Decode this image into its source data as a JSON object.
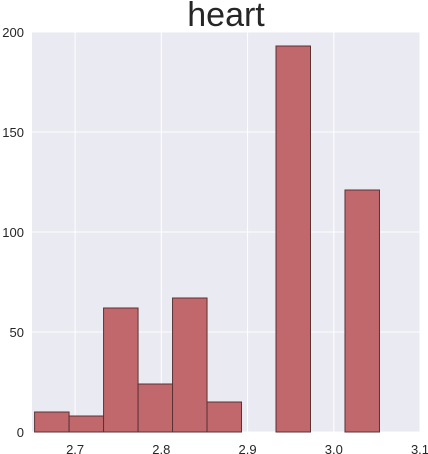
{
  "chart_data": {
    "type": "bar",
    "title": "heart",
    "xlabel": "",
    "ylabel": "",
    "xlim": [
      2.65,
      3.1
    ],
    "ylim": [
      0,
      200
    ],
    "grid": true,
    "x_ticks": [
      "2.7",
      "2.8",
      "2.9",
      "3.0",
      "3.1"
    ],
    "y_ticks": [
      "0",
      "50",
      "100",
      "150",
      "200"
    ],
    "bins": [
      {
        "start": 2.653,
        "end": 2.693,
        "value": 10
      },
      {
        "start": 2.693,
        "end": 2.733,
        "value": 8
      },
      {
        "start": 2.733,
        "end": 2.773,
        "value": 62
      },
      {
        "start": 2.773,
        "end": 2.813,
        "value": 24
      },
      {
        "start": 2.813,
        "end": 2.853,
        "value": 67
      },
      {
        "start": 2.853,
        "end": 2.893,
        "value": 15
      },
      {
        "start": 2.893,
        "end": 2.933,
        "value": 0
      },
      {
        "start": 2.933,
        "end": 2.973,
        "value": 193
      },
      {
        "start": 2.973,
        "end": 3.013,
        "value": 0
      },
      {
        "start": 3.013,
        "end": 3.053,
        "value": 121
      }
    ],
    "colors": {
      "bar_fill": "#c0686b",
      "bar_edge": "#5a3234",
      "plot_bg": "#eaeaf2",
      "grid": "#ffffff",
      "text": "#262626"
    }
  }
}
